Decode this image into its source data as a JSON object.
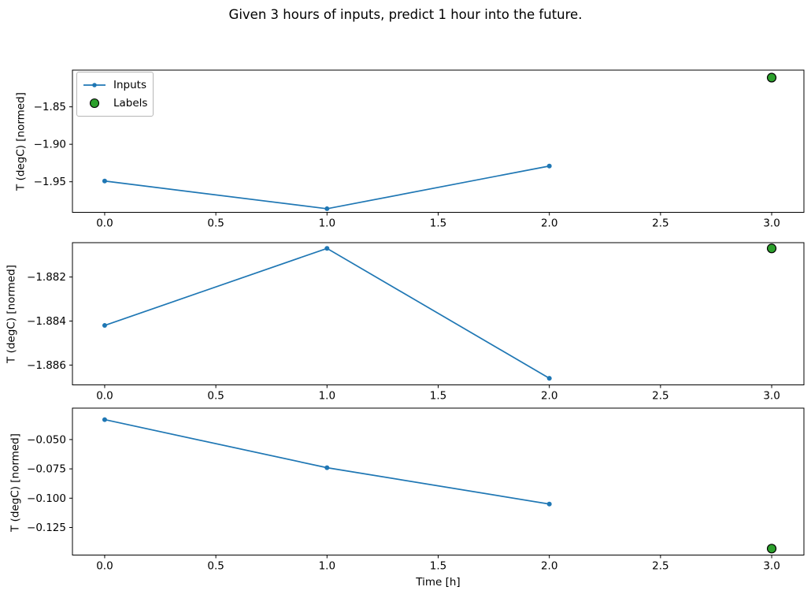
{
  "figure": {
    "title": "Given 3 hours of inputs, predict 1 hour into the future.",
    "xlabel": "Time [h]",
    "ylabel": "T (degC) [normed]",
    "legend": {
      "inputs": "Inputs",
      "labels": "Labels"
    },
    "colors": {
      "inputs_line": "#1f77b4",
      "labels_fill": "#2ca02c",
      "labels_edge": "#000000",
      "axis": "#000000",
      "background": "#ffffff"
    }
  },
  "chart_data": [
    {
      "type": "line",
      "title": "",
      "xlabel": "",
      "ylabel": "T (degC) [normed]",
      "series": [
        {
          "name": "Inputs",
          "style": "line+marker",
          "color": "#1f77b4",
          "x": [
            0,
            1,
            2
          ],
          "y": [
            -1.949,
            -1.986,
            -1.929
          ]
        },
        {
          "name": "Labels",
          "style": "scatter",
          "color": "#2ca02c",
          "edge_color": "#000000",
          "x": [
            3
          ],
          "y": [
            -1.811
          ]
        }
      ],
      "xlim": [
        -0.145,
        3.145
      ],
      "ylim": [
        -1.9908,
        -1.801
      ],
      "xticks": [
        0,
        0.5,
        1,
        1.5,
        2,
        2.5,
        3
      ],
      "yticks": [
        -1.85,
        -1.9,
        -1.95
      ],
      "xtick_decimals": 1,
      "ytick_decimals": 2,
      "grid": false,
      "show_legend": true,
      "legend_position": "upper left"
    },
    {
      "type": "line",
      "title": "",
      "xlabel": "",
      "ylabel": "T (degC) [normed]",
      "series": [
        {
          "name": "Inputs",
          "style": "line+marker",
          "color": "#1f77b4",
          "x": [
            0,
            1,
            2
          ],
          "y": [
            -1.8842,
            -1.8807,
            -1.8866
          ]
        },
        {
          "name": "Labels",
          "style": "scatter",
          "color": "#2ca02c",
          "edge_color": "#000000",
          "x": [
            3
          ],
          "y": [
            -1.8807
          ]
        }
      ],
      "xlim": [
        -0.145,
        3.145
      ],
      "ylim": [
        -1.8869,
        -1.88044
      ],
      "xticks": [
        0,
        0.5,
        1,
        1.5,
        2,
        2.5,
        3
      ],
      "yticks": [
        -1.882,
        -1.884,
        -1.886
      ],
      "xtick_decimals": 1,
      "ytick_decimals": 3,
      "grid": false,
      "show_legend": false
    },
    {
      "type": "line",
      "title": "",
      "xlabel": "Time [h]",
      "ylabel": "T (degC) [normed]",
      "series": [
        {
          "name": "Inputs",
          "style": "line+marker",
          "color": "#1f77b4",
          "x": [
            0,
            1,
            2
          ],
          "y": [
            -0.033,
            -0.074,
            -0.105
          ]
        },
        {
          "name": "Labels",
          "style": "scatter",
          "color": "#2ca02c",
          "edge_color": "#000000",
          "x": [
            3
          ],
          "y": [
            -0.143
          ]
        }
      ],
      "xlim": [
        -0.145,
        3.145
      ],
      "ylim": [
        -0.1485,
        -0.0232
      ],
      "xticks": [
        0,
        0.5,
        1,
        1.5,
        2,
        2.5,
        3
      ],
      "yticks": [
        -0.05,
        -0.075,
        -0.1,
        -0.125
      ],
      "xtick_decimals": 1,
      "ytick_decimals": 3,
      "grid": false,
      "show_legend": false
    }
  ]
}
